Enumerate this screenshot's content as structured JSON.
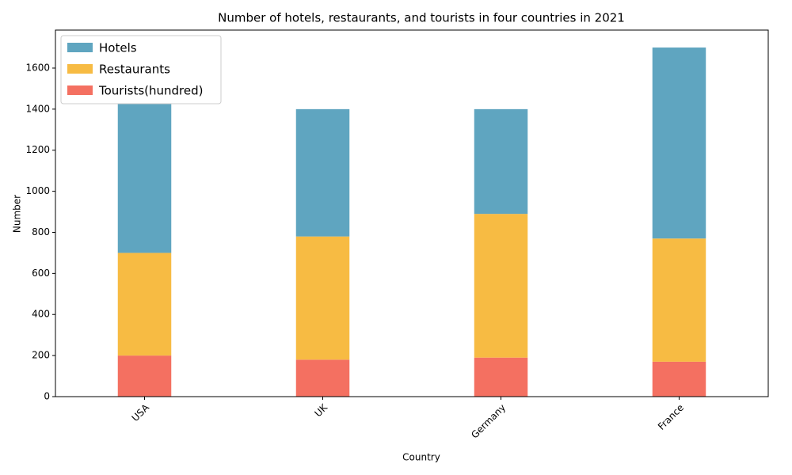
{
  "chart_data": {
    "type": "stacked_bar",
    "title": "Number of hotels, restaurants, and tourists in four countries in 2021",
    "x_label": "Country",
    "y_label": "Number",
    "categories": [
      "USA",
      "UK",
      "Germany",
      "France"
    ],
    "series": [
      {
        "name": "Hotels",
        "color": "#5fa5c0",
        "values": [
          900,
          620,
          510,
          930
        ]
      },
      {
        "name": "Restaurants",
        "color": "#f7bb43",
        "values": [
          500,
          600,
          700,
          600
        ]
      },
      {
        "name": "Tourists(hundred)",
        "color": "#f47061",
        "values": [
          200,
          180,
          190,
          170
        ]
      }
    ],
    "ylim": [
      0,
      1785
    ],
    "yticks": [
      0,
      200,
      400,
      600,
      800,
      1000,
      1200,
      1400,
      1600
    ],
    "legend": "upper left"
  }
}
